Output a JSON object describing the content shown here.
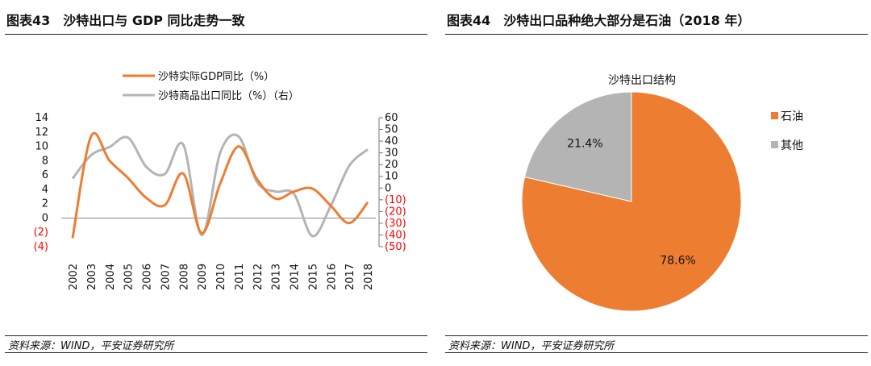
{
  "left": {
    "title": "图表43　沙特出口与 GDP 同比走势一致",
    "source": "资料来源：WIND，平安证券研究所"
  },
  "right": {
    "title": "图表44　沙特出口品种绝大部分是石油（2018 年）",
    "source": "资料来源：WIND，平安证券研究所"
  },
  "colors": {
    "orange": "#ED7D31",
    "gray": "#B4B4B4",
    "neg_red": "#FF0000"
  },
  "chart_data": [
    {
      "type": "line",
      "x": [
        "2002",
        "2003",
        "2004",
        "2005",
        "2006",
        "2007",
        "2008",
        "2009",
        "2010",
        "2011",
        "2012",
        "2013",
        "2014",
        "2015",
        "2016",
        "2017",
        "2018"
      ],
      "series": [
        {
          "name": "沙特实际GDP同比（%）",
          "axis": "left",
          "color": "#ED7D31",
          "values": [
            -2.8,
            11.4,
            8.0,
            5.6,
            2.8,
            1.8,
            6.2,
            -2.1,
            4.8,
            10.0,
            5.4,
            2.7,
            3.7,
            4.1,
            1.7,
            -0.7,
            2.2
          ]
        },
        {
          "name": "沙特商品出口同比（%）（右）",
          "axis": "right",
          "color": "#B4B4B4",
          "values": [
            8,
            28,
            35,
            43,
            18,
            12,
            37,
            -40,
            30,
            44,
            5,
            -3,
            -5,
            -41,
            -15,
            19,
            33
          ]
        }
      ],
      "y_left": {
        "min": -4,
        "max": 14,
        "ticks": [
          14,
          12,
          10,
          8,
          6,
          4,
          2,
          0,
          -2,
          -4
        ],
        "tick_labels": [
          "14",
          "12",
          "10",
          "8",
          "6",
          "4",
          "2",
          "0",
          "(2)",
          "(4)"
        ]
      },
      "y_right": {
        "min": -50,
        "max": 60,
        "ticks": [
          60,
          50,
          40,
          30,
          20,
          10,
          0,
          -10,
          -20,
          -30,
          -40,
          -50
        ],
        "tick_labels": [
          "60",
          "50",
          "40",
          "30",
          "20",
          "10",
          "0",
          "(10)",
          "(20)",
          "(30)",
          "(40)",
          "(50)"
        ]
      },
      "legend_placement": "top",
      "grid": false
    },
    {
      "type": "pie",
      "title": "沙特出口结构",
      "labels": [
        "石油",
        "其他"
      ],
      "values": [
        78.6,
        21.4
      ],
      "value_labels": [
        "78.6%",
        "21.4%"
      ],
      "colors": [
        "#ED7D31",
        "#B4B4B4"
      ],
      "legend_placement": "right"
    }
  ]
}
